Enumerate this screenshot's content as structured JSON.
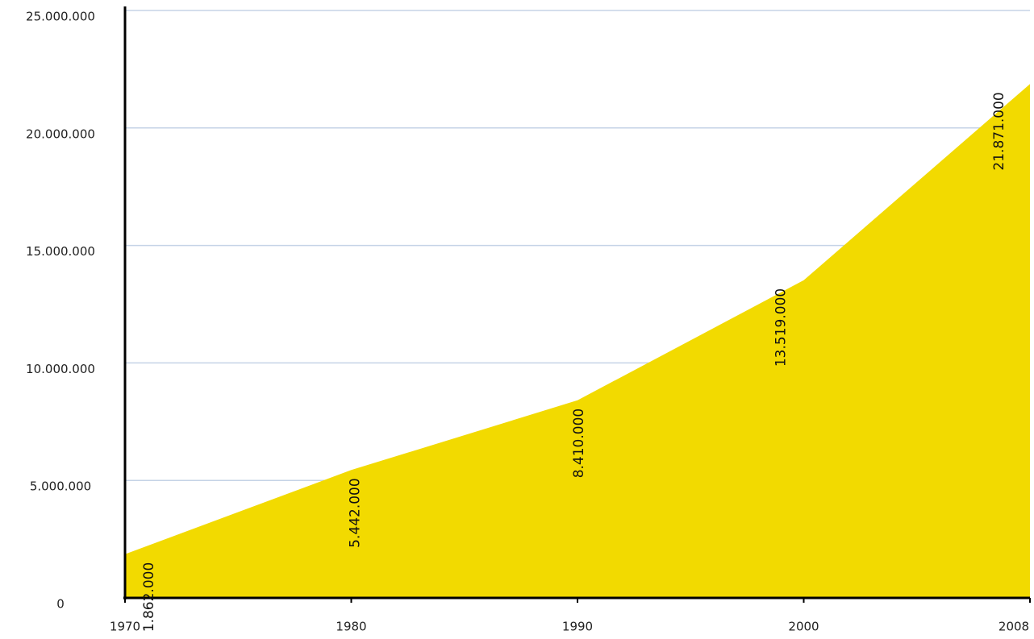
{
  "chart_data": {
    "type": "area",
    "categories": [
      "1970",
      "1980",
      "1990",
      "2000",
      "2008"
    ],
    "values": [
      1862000,
      5442000,
      8410000,
      13519000,
      21871000
    ],
    "value_labels": [
      "1.862.000",
      "5.442.000",
      "8.410.000",
      "13.519.000",
      "21.871.000"
    ],
    "color": "#f2da00",
    "ylim": [
      0,
      25000000
    ],
    "yticks": [
      {
        "value": 0,
        "label": "0"
      },
      {
        "value": 5000000,
        "label": "5.000.000"
      },
      {
        "value": 10000000,
        "label": "10.000.000"
      },
      {
        "value": 15000000,
        "label": "15.000.000"
      },
      {
        "value": 20000000,
        "label": "20.000.000"
      },
      {
        "value": 25000000,
        "label": "25.000.000"
      }
    ],
    "grid": true
  }
}
